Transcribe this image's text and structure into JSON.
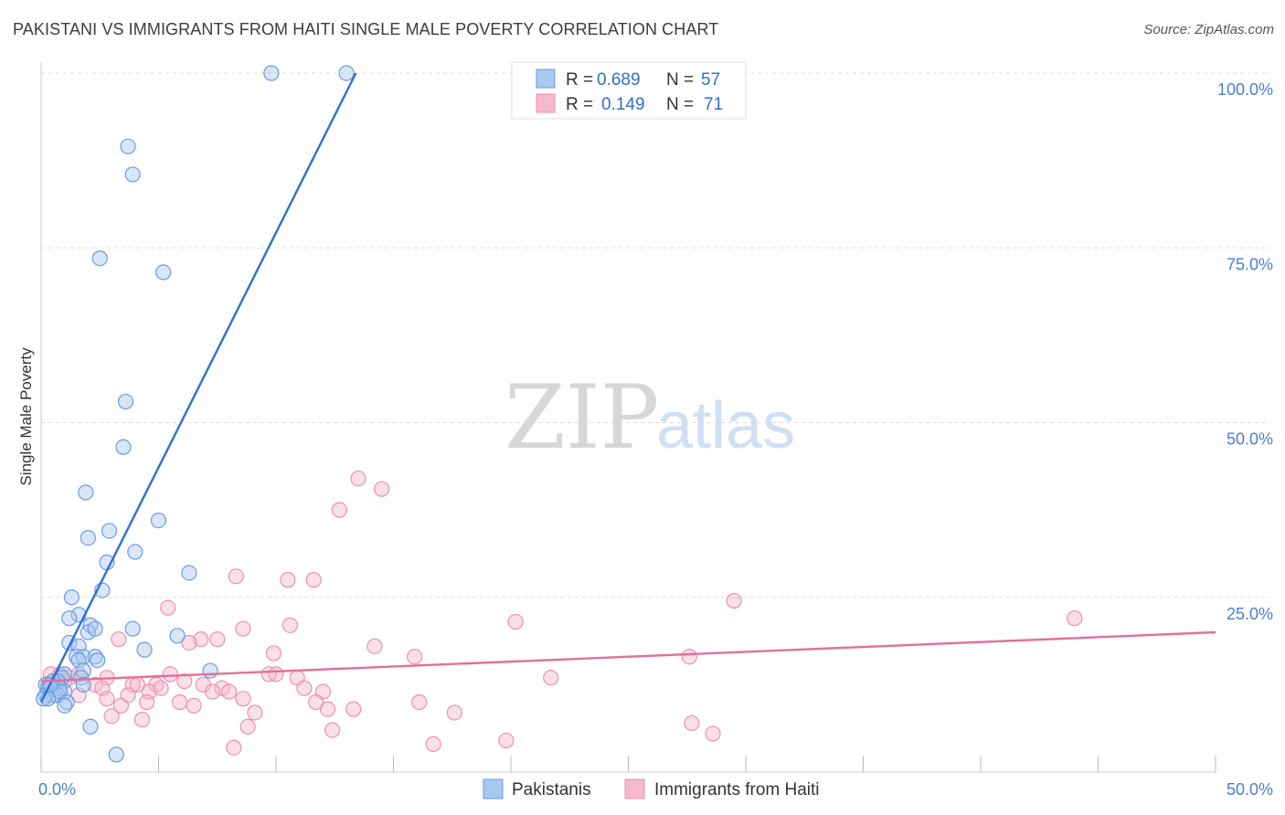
{
  "title": "PAKISTANI VS IMMIGRANTS FROM HAITI SINGLE MALE POVERTY CORRELATION CHART",
  "source": "Source: ZipAtlas.com",
  "watermark": {
    "zip": "ZIP",
    "atlas": "atlas"
  },
  "colors": {
    "blue_fill": "#a9c8f0",
    "blue_stroke": "#6b9be0",
    "blue_line": "#2f6fd0",
    "pink_fill": "#f6b8cb",
    "pink_stroke": "#ee8fb0",
    "pink_line": "#e2709a",
    "grid": "#dddddd",
    "axis_text": "#4a7fcf"
  },
  "legend": {
    "rows": [
      {
        "r_label": "R =",
        "r_value": "0.689",
        "n_label": "N =",
        "n_value": "57"
      },
      {
        "r_label": "R =",
        "r_value": "0.149",
        "n_label": "N =",
        "n_value": "71"
      }
    ]
  },
  "bottom_legend": [
    "Pakistanis",
    "Immigrants from Haiti"
  ],
  "chart_data": {
    "type": "scatter",
    "title": "PAKISTANI VS IMMIGRANTS FROM HAITI SINGLE MALE POVERTY CORRELATION CHART",
    "xlabel": "",
    "ylabel": "Single Male Poverty",
    "xlim": [
      0,
      50
    ],
    "ylim": [
      0,
      100
    ],
    "x_tick_labels": [
      "0.0%",
      "50.0%"
    ],
    "y_tick_labels": [
      "25.0%",
      "50.0%",
      "75.0%",
      "100.0%"
    ],
    "y_ticks": [
      25,
      50,
      75,
      100
    ],
    "grid": true,
    "legend_position": "top-center",
    "series": [
      {
        "name": "Pakistanis",
        "color": "#a9c8f0",
        "R": 0.689,
        "N": 57,
        "trend": {
          "x": [
            0.0,
            13.4
          ],
          "y": [
            10.0,
            100.0
          ]
        },
        "points": [
          [
            9.8,
            100
          ],
          [
            13.0,
            100
          ],
          [
            3.7,
            89.5
          ],
          [
            3.9,
            85.5
          ],
          [
            2.5,
            73.5
          ],
          [
            5.2,
            71.5
          ],
          [
            3.6,
            53
          ],
          [
            3.5,
            46.5
          ],
          [
            1.9,
            40
          ],
          [
            5.0,
            36
          ],
          [
            2.9,
            34.5
          ],
          [
            2.0,
            33.5
          ],
          [
            4.0,
            31.5
          ],
          [
            2.8,
            30
          ],
          [
            6.3,
            28.5
          ],
          [
            2.6,
            26
          ],
          [
            1.3,
            25
          ],
          [
            1.6,
            22.5
          ],
          [
            1.2,
            22
          ],
          [
            3.9,
            20.5
          ],
          [
            2.1,
            21
          ],
          [
            2.0,
            20
          ],
          [
            2.3,
            20.5
          ],
          [
            5.8,
            19.5
          ],
          [
            1.2,
            18.5
          ],
          [
            1.6,
            18
          ],
          [
            4.4,
            17.5
          ],
          [
            1.5,
            16.5
          ],
          [
            1.8,
            16.5
          ],
          [
            2.3,
            16.5
          ],
          [
            2.4,
            16
          ],
          [
            1.6,
            16
          ],
          [
            1.8,
            14.5
          ],
          [
            7.2,
            14.5
          ],
          [
            1.0,
            14
          ],
          [
            0.9,
            13.5
          ],
          [
            0.7,
            13
          ],
          [
            0.5,
            13
          ],
          [
            0.2,
            12.5
          ],
          [
            0.3,
            12
          ],
          [
            0.4,
            12
          ],
          [
            0.6,
            12
          ],
          [
            0.8,
            12
          ],
          [
            1.7,
            13.5
          ],
          [
            1.8,
            12.5
          ],
          [
            1.0,
            11.5
          ],
          [
            0.5,
            11
          ],
          [
            0.7,
            11
          ],
          [
            0.8,
            11.5
          ],
          [
            0.2,
            11
          ],
          [
            0.1,
            10.5
          ],
          [
            0.3,
            10.5
          ],
          [
            1.1,
            10
          ],
          [
            1.0,
            9.5
          ],
          [
            2.1,
            6.5
          ],
          [
            3.2,
            2.5
          ],
          [
            0.4,
            12.5
          ]
        ]
      },
      {
        "name": "Immigrants from Haiti",
        "color": "#f6b8cb",
        "R": 0.149,
        "N": 71,
        "trend": {
          "x": [
            0.0,
            50.0
          ],
          "y": [
            13.0,
            20.0
          ]
        },
        "points": [
          [
            13.5,
            42
          ],
          [
            14.5,
            40.5
          ],
          [
            12.7,
            37.5
          ],
          [
            8.3,
            28
          ],
          [
            10.5,
            27.5
          ],
          [
            11.6,
            27.5
          ],
          [
            29.5,
            24.5
          ],
          [
            5.4,
            23.5
          ],
          [
            44.0,
            22
          ],
          [
            20.2,
            21.5
          ],
          [
            10.6,
            21
          ],
          [
            8.6,
            20.5
          ],
          [
            3.3,
            19
          ],
          [
            6.8,
            19
          ],
          [
            7.5,
            19
          ],
          [
            6.3,
            18.5
          ],
          [
            14.2,
            18
          ],
          [
            15.9,
            16.5
          ],
          [
            9.9,
            17
          ],
          [
            27.6,
            16.5
          ],
          [
            5.5,
            14
          ],
          [
            9.7,
            14
          ],
          [
            10.0,
            14
          ],
          [
            10.9,
            13.5
          ],
          [
            21.7,
            13.5
          ],
          [
            2.8,
            13.5
          ],
          [
            4.9,
            12.5
          ],
          [
            6.1,
            13
          ],
          [
            6.9,
            12.5
          ],
          [
            3.9,
            12.5
          ],
          [
            2.3,
            12.5
          ],
          [
            2.6,
            12
          ],
          [
            4.1,
            12.5
          ],
          [
            4.6,
            11.5
          ],
          [
            5.1,
            12
          ],
          [
            7.7,
            12
          ],
          [
            8.0,
            11.5
          ],
          [
            7.3,
            11.5
          ],
          [
            11.2,
            12
          ],
          [
            3.7,
            11
          ],
          [
            1.6,
            11
          ],
          [
            12.0,
            11.5
          ],
          [
            2.8,
            10.5
          ],
          [
            4.5,
            10
          ],
          [
            5.9,
            10
          ],
          [
            8.6,
            10.5
          ],
          [
            11.7,
            10
          ],
          [
            3.4,
            9.5
          ],
          [
            6.5,
            9.5
          ],
          [
            12.2,
            9
          ],
          [
            13.3,
            9
          ],
          [
            16.1,
            10
          ],
          [
            17.6,
            8.5
          ],
          [
            9.1,
            8.5
          ],
          [
            3.0,
            8
          ],
          [
            4.3,
            7.5
          ],
          [
            8.8,
            6.5
          ],
          [
            12.4,
            6
          ],
          [
            27.7,
            7
          ],
          [
            28.6,
            5.5
          ],
          [
            19.8,
            4.5
          ],
          [
            16.7,
            4
          ],
          [
            8.2,
            3.5
          ],
          [
            1.2,
            13.5
          ],
          [
            1.6,
            14
          ],
          [
            0.7,
            13.5
          ],
          [
            0.8,
            14
          ],
          [
            0.5,
            13
          ],
          [
            0.3,
            12.5
          ],
          [
            0.4,
            14
          ],
          [
            1.0,
            13
          ]
        ]
      }
    ]
  }
}
